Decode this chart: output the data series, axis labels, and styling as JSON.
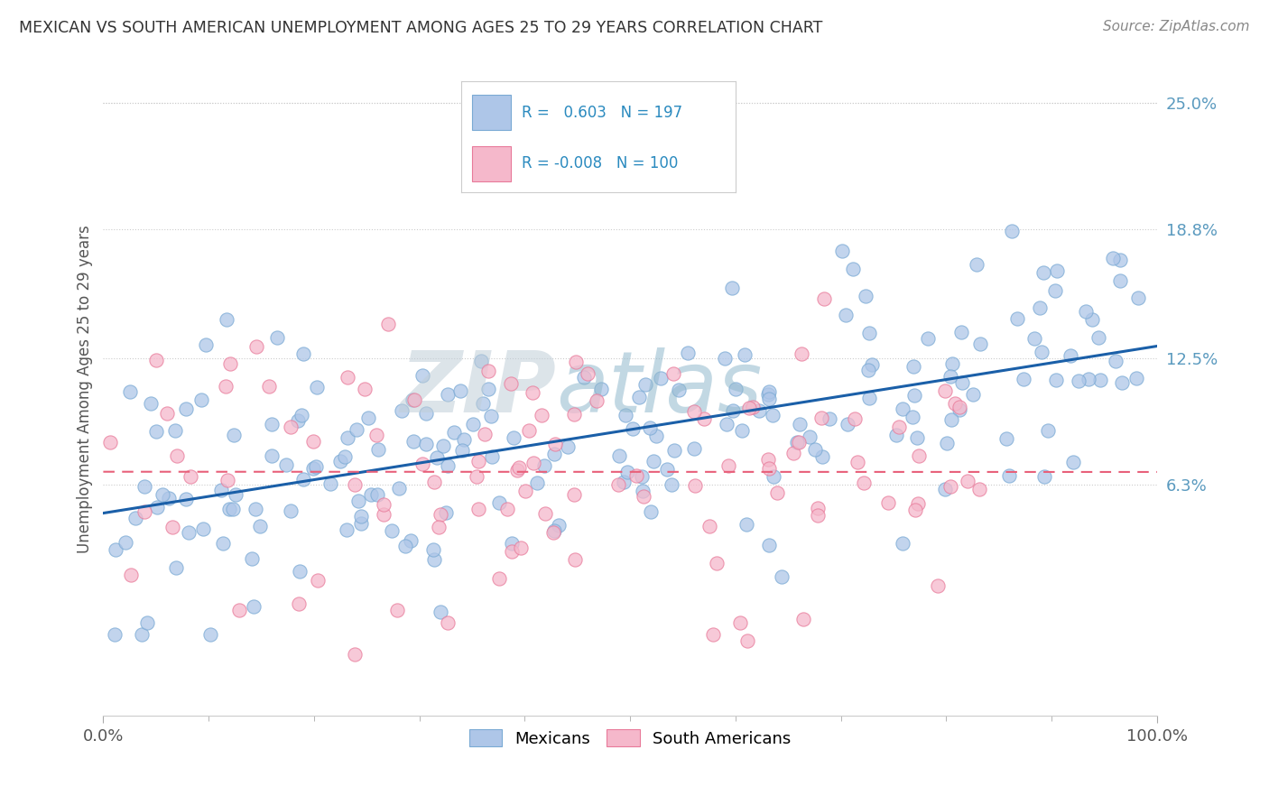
{
  "title": "MEXICAN VS SOUTH AMERICAN UNEMPLOYMENT AMONG AGES 25 TO 29 YEARS CORRELATION CHART",
  "source": "Source: ZipAtlas.com",
  "ylabel": "Unemployment Among Ages 25 to 29 years",
  "xlim": [
    0,
    1
  ],
  "ylim": [
    -0.05,
    0.27
  ],
  "yticks": [
    0.063,
    0.125,
    0.188,
    0.25
  ],
  "ytick_labels": [
    "6.3%",
    "12.5%",
    "18.8%",
    "25.0%"
  ],
  "mexican_R": 0.603,
  "mexican_N": 197,
  "south_american_R": -0.008,
  "south_american_N": 100,
  "mexican_color": "#aec6e8",
  "mexican_edge_color": "#7aaad4",
  "south_american_color": "#f5b8cb",
  "south_american_edge_color": "#e87a9a",
  "trend_mexican_color": "#1a5fa8",
  "trend_south_american_color": "#e8607a",
  "background_color": "#ffffff",
  "watermark_zip_color": "#c8d4de",
  "watermark_atlas_color": "#a8c8d8",
  "grid_color": "#cccccc",
  "title_color": "#333333",
  "source_color": "#888888",
  "legend_color": "#2a8abf",
  "tick_color": "#5a9abf"
}
